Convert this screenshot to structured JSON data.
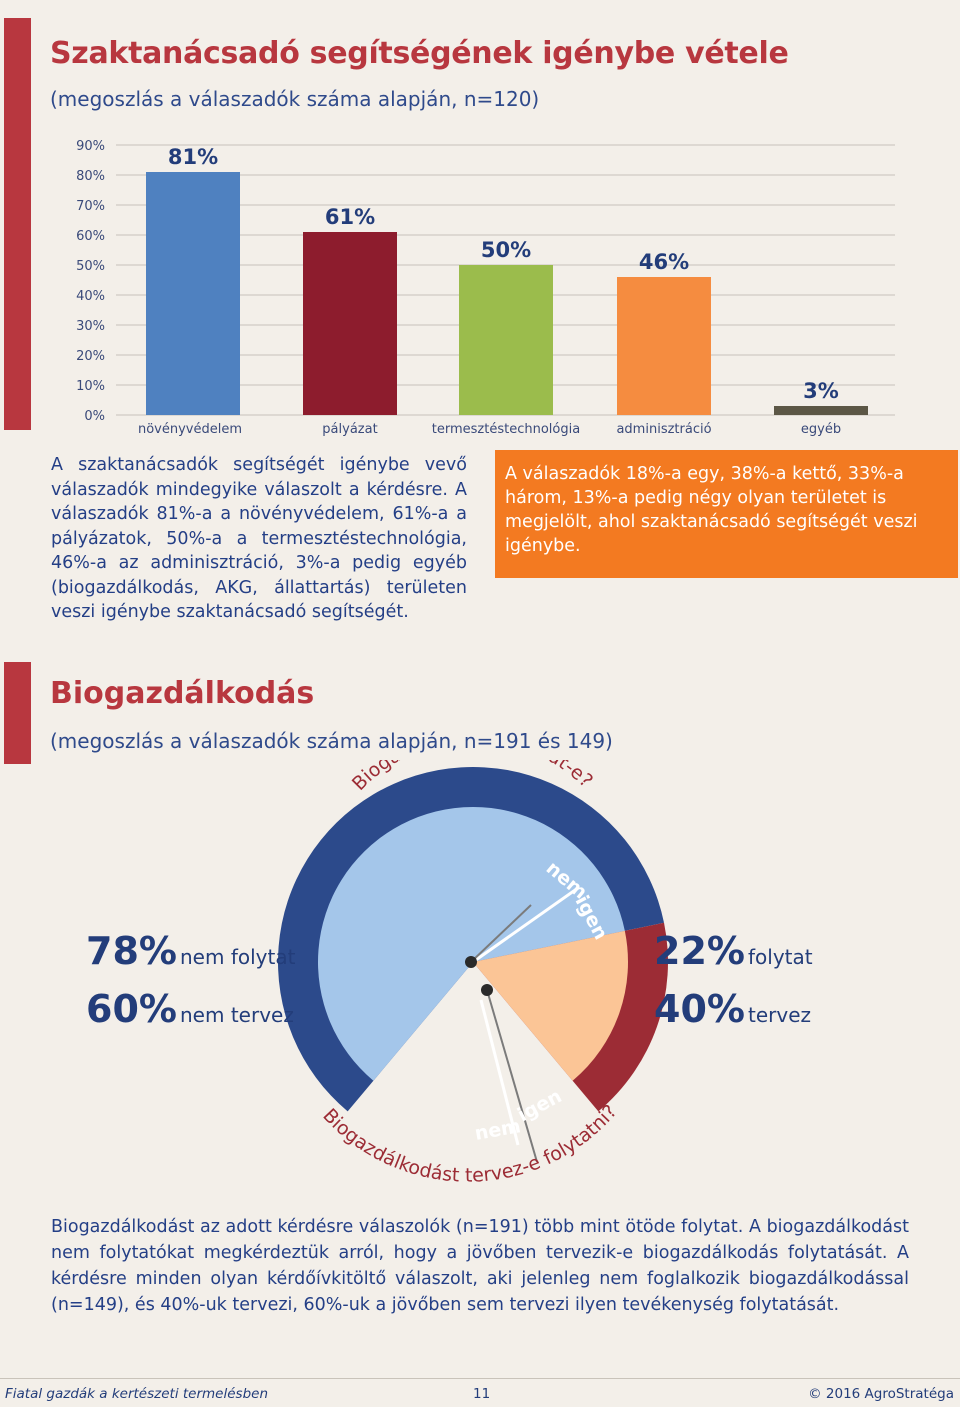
{
  "section1": {
    "title": "Szaktanácsadó segítségének igénybe vétele",
    "subtitle": "(megoszlás a válaszadók száma alapján, n=120)",
    "paragraph": "A szaktanácsadók segítségét igénybe vevő válaszadók mindegyike válaszolt a kérdésre. A válaszadók 81%-a a növényvédelem, 61%-a a pályázatok, 50%-a a termesztéstechnológia, 46%-a az adminisztráció, 3%-a pedig egyéb (biogazdálkodás, AKG, állattartás) területen veszi igénybe szaktanácsadó segítségét.",
    "box_text": "A válaszadók 18%-a egy, 38%-a kettő, 33%-a három, 13%-a pedig négy olyan területet is megjelölt, ahol szaktanácsadó segítségét veszi igénybe."
  },
  "section2": {
    "title": "Biogazdálkodás",
    "subtitle": "(megoszlás a válaszadók száma alapján, n=191 és 149)",
    "paragraph": "Biogazdálkodást az adott kérdésre válaszolók (n=191) több mint ötöde folytat. A biogazdálkodást nem folytatókat megkérdeztük arról, hogy a jövőben tervezik-e biogazdálkodás folytatását. A kérdésre minden olyan kérdőívkitöltő válaszolt, aki jelenleg nem foglalkozik biogazdálkodással (n=149), és 40%-uk tervezi, 60%-uk a jövőben sem tervezi ilyen tevékenység folytatását."
  },
  "footer": {
    "left": "Fiatal gazdák a kertészeti termelésben",
    "page": "11",
    "right": "© 2016 AgroStratéga"
  },
  "colors": {
    "accent": "#b8373f",
    "text_blue": "#233d7a",
    "box_orange": "#f37a21"
  },
  "chart_data": [
    {
      "type": "bar",
      "categories": [
        "növényvédelem",
        "pályázat",
        "termesztéstechnológia",
        "adminisztráció",
        "egyéb"
      ],
      "values": [
        81,
        61,
        50,
        46,
        3
      ],
      "value_labels": [
        "81%",
        "61%",
        "50%",
        "46%",
        "3%"
      ],
      "colors": [
        "#4f81c0",
        "#8d1c2d",
        "#9bbc4c",
        "#f58c40",
        "#5c5746"
      ],
      "yticks": [
        "0%",
        "10%",
        "20%",
        "30%",
        "40%",
        "50%",
        "60%",
        "70%",
        "80%",
        "90%"
      ],
      "ylim": [
        0,
        90
      ],
      "grid": true
    },
    {
      "type": "pie",
      "outer_ring": {
        "question": "Biogazdálkodást folytat-e?",
        "segments": [
          {
            "label": "nem",
            "value": 78,
            "value_label": "78%",
            "caption": "nem folytat"
          },
          {
            "label": "igen",
            "value": 22,
            "value_label": "22%",
            "caption": "folytat"
          }
        ]
      },
      "inner_disc": {
        "question": "Biogazdálkodást tervez-e folytatni?",
        "segments": [
          {
            "label": "nem",
            "value": 60,
            "value_label": "60%",
            "caption": "nem tervez"
          },
          {
            "label": "igen",
            "value": 40,
            "value_label": "40%",
            "caption": "tervez"
          }
        ]
      }
    }
  ]
}
